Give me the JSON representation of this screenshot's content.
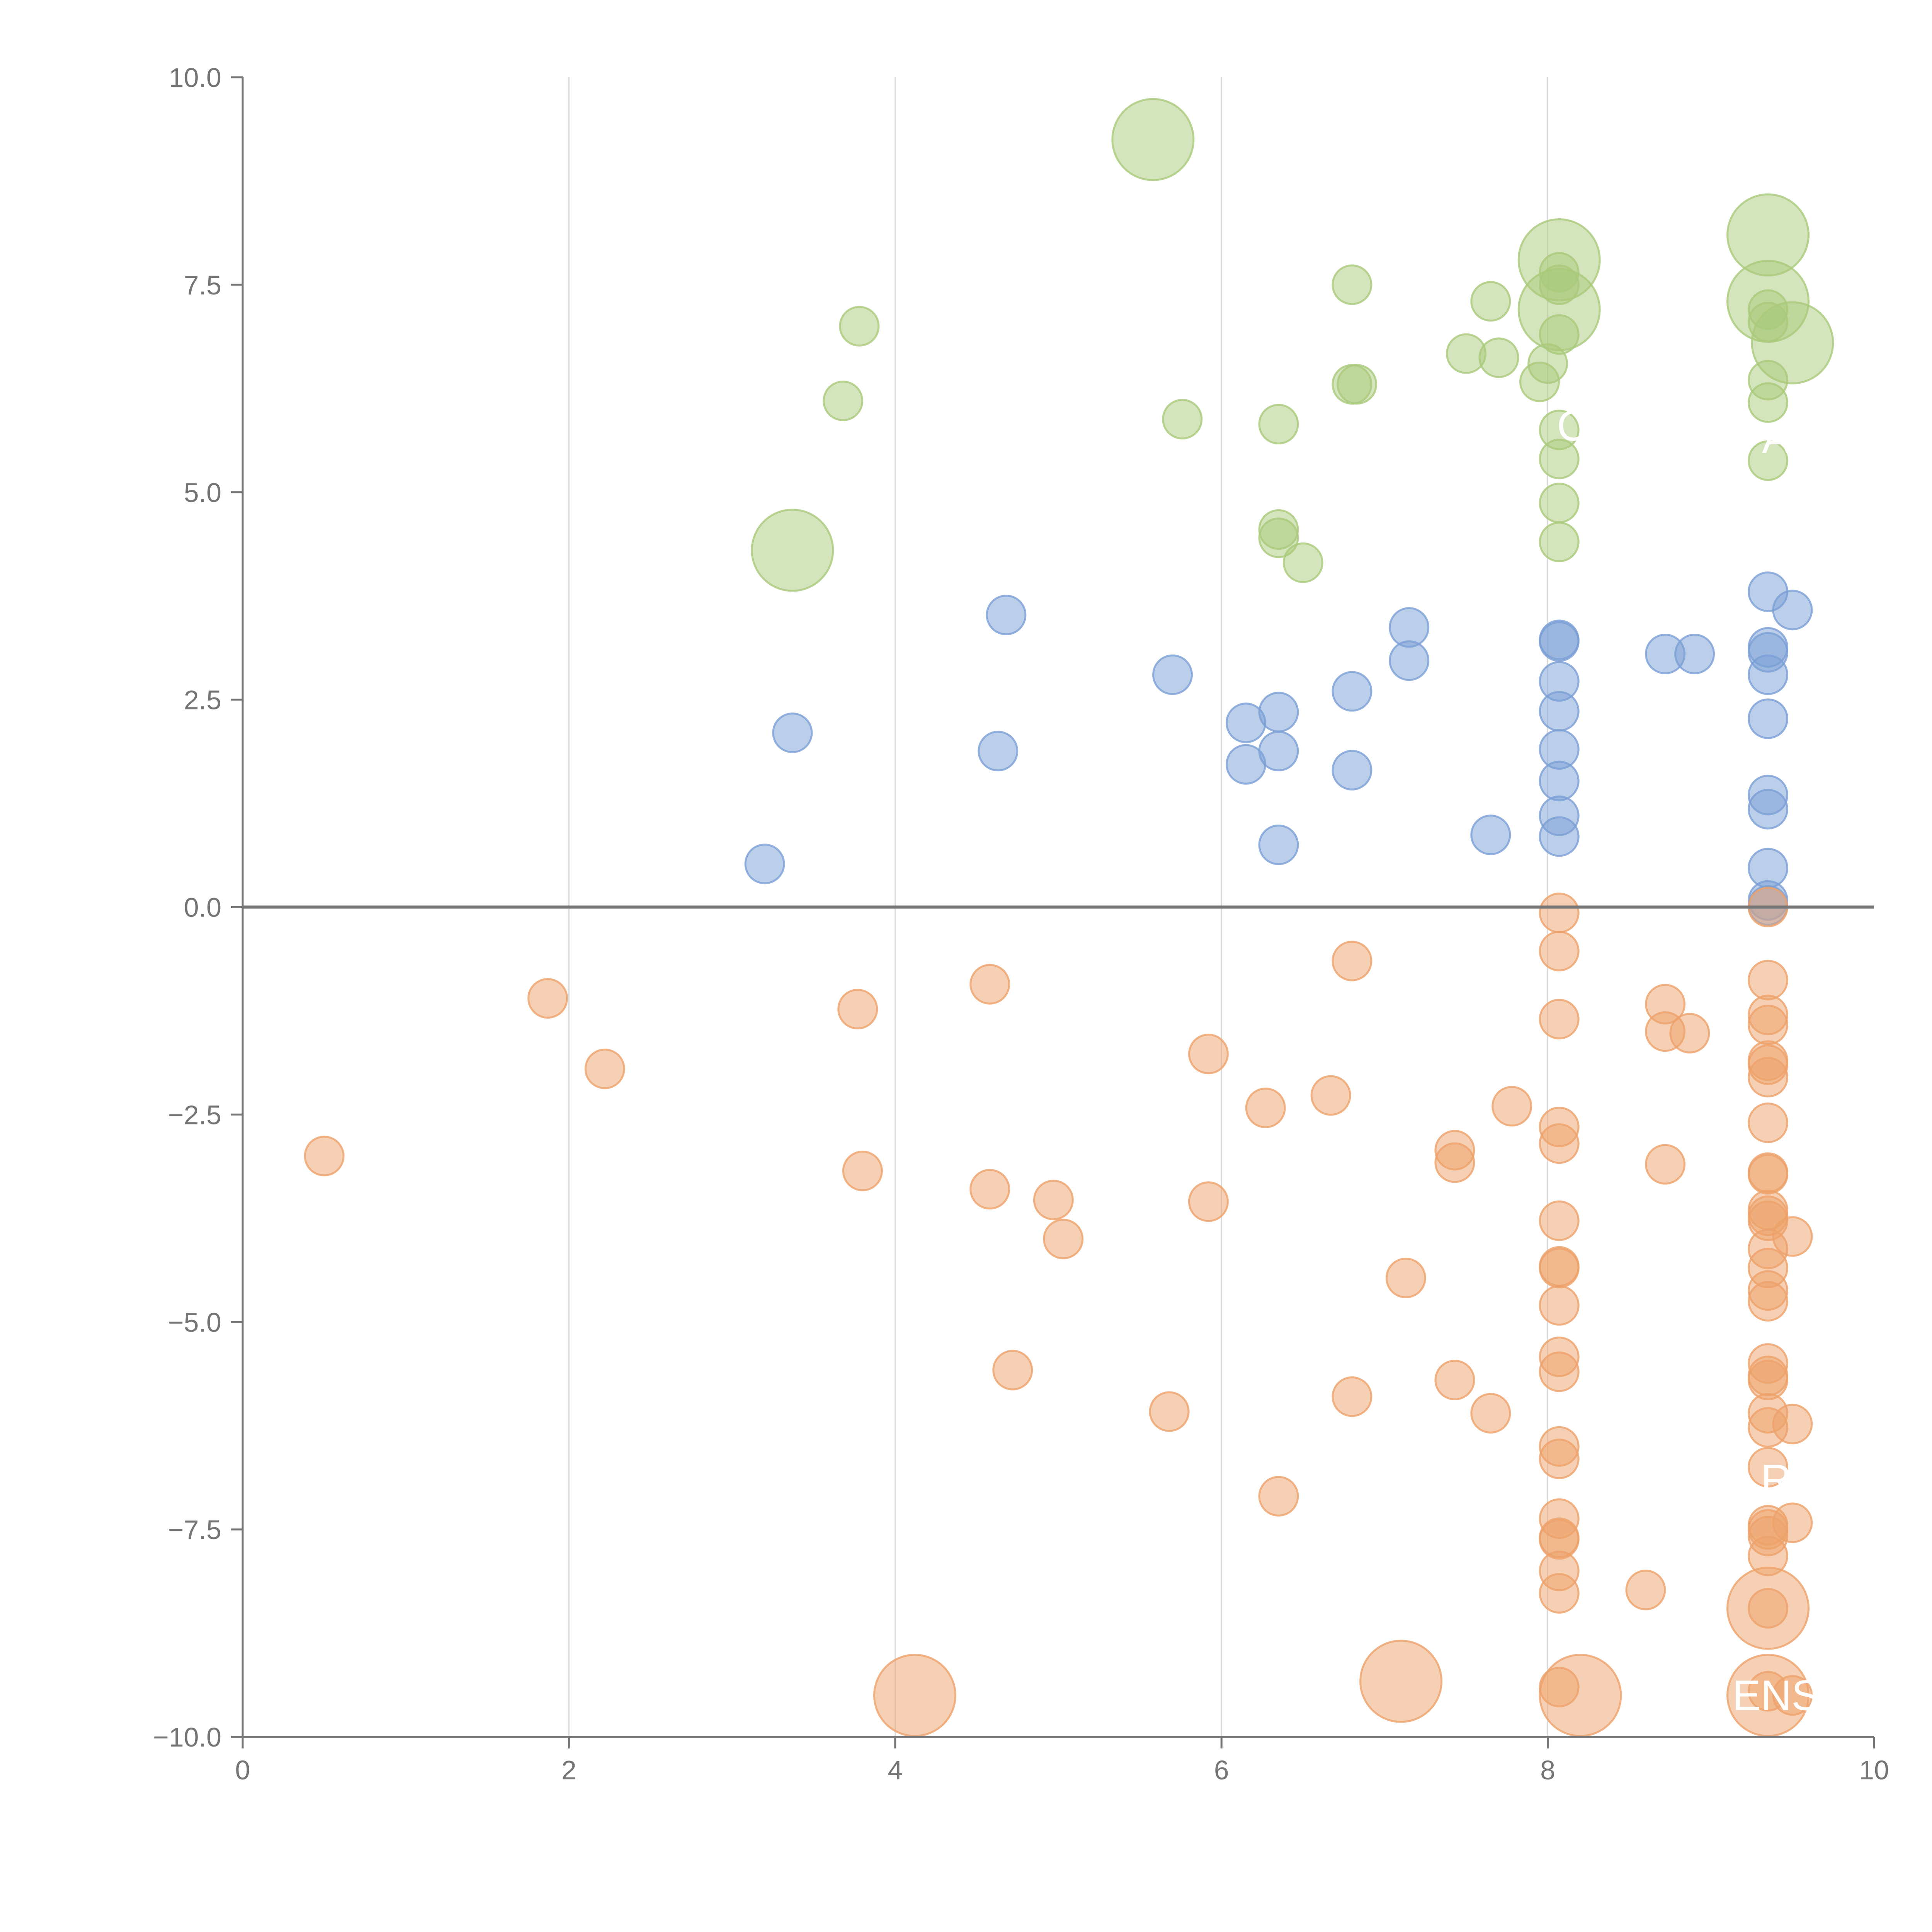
{
  "chart_data": {
    "type": "scatter",
    "title": "",
    "xlabel": "",
    "ylabel": "",
    "xlim": [
      0,
      10
    ],
    "ylim": [
      -10,
      10
    ],
    "grid": "vertical",
    "x_ticks": [
      "0",
      "2",
      "4",
      "6",
      "8",
      "10"
    ],
    "y_ticks": [
      "−10.0",
      "−7.5",
      "−5.0",
      "−2.5",
      "0.0",
      "2.5",
      "5.0",
      "7.5",
      "10.0"
    ],
    "bubble_sizes_note_small": 1,
    "colors": {
      "green": "#a9c97a",
      "blue": "#7a9fd6",
      "orange": "#eea16a"
    },
    "annotations": [
      {
        "text": "ENS",
        "x": 9.4,
        "y": -9.5
      },
      {
        "text": "R",
        "x": 9.4,
        "y": -6.9
      },
      {
        "text": "C",
        "x": 8.15,
        "y": 5.8
      },
      {
        "text": "A",
        "x": 9.4,
        "y": 5.65
      }
    ],
    "series": [
      {
        "color": "green",
        "points": [
          [
            5.58,
            9.25,
            3
          ],
          [
            3.37,
            4.3,
            3
          ],
          [
            8.07,
            7.8,
            3
          ],
          [
            8.07,
            7.2,
            3
          ],
          [
            9.35,
            8.1,
            3
          ],
          [
            9.35,
            7.3,
            3
          ],
          [
            9.5,
            6.8,
            3
          ],
          [
            3.78,
            7.0,
            1
          ],
          [
            3.68,
            6.1,
            1
          ],
          [
            6.8,
            7.5,
            1
          ],
          [
            6.8,
            6.3,
            1
          ],
          [
            6.83,
            6.3,
            1
          ],
          [
            5.76,
            5.88,
            1
          ],
          [
            6.35,
            5.82,
            1
          ],
          [
            6.35,
            4.55,
            1
          ],
          [
            6.35,
            4.45,
            1
          ],
          [
            6.5,
            4.15,
            1
          ],
          [
            7.5,
            6.67,
            1
          ],
          [
            7.65,
            7.3,
            1
          ],
          [
            7.7,
            6.62,
            1
          ],
          [
            7.95,
            6.33,
            1
          ],
          [
            8.0,
            6.55,
            1
          ],
          [
            8.07,
            7.65,
            1
          ],
          [
            8.07,
            7.5,
            1
          ],
          [
            8.07,
            6.9,
            1
          ],
          [
            8.07,
            5.75,
            1
          ],
          [
            8.07,
            5.4,
            1
          ],
          [
            8.07,
            4.87,
            1
          ],
          [
            8.07,
            4.4,
            1
          ],
          [
            9.35,
            7.2,
            1
          ],
          [
            9.35,
            7.05,
            1
          ],
          [
            9.35,
            6.35,
            1
          ],
          [
            9.35,
            6.08,
            1
          ],
          [
            9.35,
            5.38,
            1
          ]
        ]
      },
      {
        "color": "blue",
        "points": [
          [
            3.2,
            0.52,
            1
          ],
          [
            3.37,
            2.1,
            1
          ],
          [
            4.63,
            1.88,
            1
          ],
          [
            4.68,
            3.52,
            1
          ],
          [
            5.7,
            2.8,
            1
          ],
          [
            6.15,
            2.22,
            1
          ],
          [
            6.15,
            1.72,
            1
          ],
          [
            6.35,
            2.35,
            1
          ],
          [
            6.35,
            1.88,
            1
          ],
          [
            6.35,
            0.75,
            1
          ],
          [
            6.8,
            2.6,
            1
          ],
          [
            6.8,
            1.65,
            1
          ],
          [
            7.15,
            3.37,
            1
          ],
          [
            7.15,
            2.97,
            1
          ],
          [
            7.65,
            0.87,
            1
          ],
          [
            8.07,
            3.22,
            1
          ],
          [
            8.07,
            3.2,
            1
          ],
          [
            8.07,
            2.72,
            1
          ],
          [
            8.07,
            2.36,
            1
          ],
          [
            8.07,
            1.9,
            1
          ],
          [
            8.07,
            1.52,
            1
          ],
          [
            8.07,
            1.1,
            1
          ],
          [
            8.07,
            0.85,
            1
          ],
          [
            8.72,
            3.05,
            1
          ],
          [
            8.9,
            3.05,
            1
          ],
          [
            9.35,
            3.8,
            1
          ],
          [
            9.5,
            3.58,
            1
          ],
          [
            9.35,
            3.13,
            1
          ],
          [
            9.35,
            3.07,
            1
          ],
          [
            9.35,
            2.8,
            1
          ],
          [
            9.35,
            2.27,
            1
          ],
          [
            9.35,
            1.35,
            1
          ],
          [
            9.35,
            1.18,
            1
          ],
          [
            9.35,
            0.47,
            1
          ],
          [
            9.35,
            0.08,
            1
          ],
          [
            9.35,
            0.02,
            1
          ]
        ]
      },
      {
        "color": "orange",
        "points": [
          [
            4.12,
            -9.5,
            3
          ],
          [
            7.1,
            -9.33,
            3
          ],
          [
            8.2,
            -9.5,
            3
          ],
          [
            9.35,
            -8.45,
            3
          ],
          [
            9.35,
            -9.5,
            3
          ],
          [
            0.5,
            -3.0,
            1
          ],
          [
            1.87,
            -1.1,
            1
          ],
          [
            2.22,
            -1.95,
            1
          ],
          [
            3.77,
            -1.23,
            1
          ],
          [
            3.8,
            -3.18,
            1
          ],
          [
            4.58,
            -0.93,
            1
          ],
          [
            4.58,
            -3.4,
            1
          ],
          [
            4.72,
            -5.58,
            1
          ],
          [
            4.97,
            -3.53,
            1
          ],
          [
            5.03,
            -4.0,
            1
          ],
          [
            5.68,
            -6.08,
            1
          ],
          [
            5.92,
            -1.77,
            1
          ],
          [
            5.92,
            -3.55,
            1
          ],
          [
            6.27,
            -2.42,
            1
          ],
          [
            6.35,
            -7.1,
            1
          ],
          [
            6.67,
            -2.27,
            1
          ],
          [
            6.8,
            -0.65,
            1
          ],
          [
            6.8,
            -5.9,
            1
          ],
          [
            7.13,
            -4.47,
            1
          ],
          [
            7.43,
            -2.93,
            1
          ],
          [
            7.43,
            -3.08,
            1
          ],
          [
            7.43,
            -5.7,
            1
          ],
          [
            7.65,
            -6.1,
            1
          ],
          [
            7.78,
            -2.4,
            1
          ],
          [
            8.07,
            -0.07,
            1
          ],
          [
            8.07,
            -0.53,
            1
          ],
          [
            8.07,
            -1.35,
            1
          ],
          [
            8.07,
            -2.65,
            1
          ],
          [
            8.07,
            -2.85,
            1
          ],
          [
            8.07,
            -3.78,
            1
          ],
          [
            8.07,
            -4.33,
            1
          ],
          [
            8.07,
            -4.35,
            1
          ],
          [
            8.07,
            -4.8,
            1
          ],
          [
            8.07,
            -5.42,
            1
          ],
          [
            8.07,
            -5.6,
            1
          ],
          [
            8.07,
            -6.5,
            1
          ],
          [
            8.07,
            -6.65,
            1
          ],
          [
            8.07,
            -7.37,
            1
          ],
          [
            8.07,
            -7.6,
            1
          ],
          [
            8.07,
            -7.62,
            1
          ],
          [
            8.07,
            -8.0,
            1
          ],
          [
            8.07,
            -8.27,
            1
          ],
          [
            8.07,
            -9.4,
            1
          ],
          [
            8.6,
            -8.23,
            1
          ],
          [
            8.72,
            -1.17,
            1
          ],
          [
            8.72,
            -1.5,
            1
          ],
          [
            8.87,
            -1.52,
            1
          ],
          [
            8.72,
            -3.1,
            1
          ],
          [
            9.35,
            0.0,
            1
          ],
          [
            9.35,
            -0.88,
            1
          ],
          [
            9.35,
            -1.3,
            1
          ],
          [
            9.35,
            -1.42,
            1
          ],
          [
            9.35,
            -1.85,
            1
          ],
          [
            9.35,
            -1.9,
            1
          ],
          [
            9.35,
            -2.05,
            1
          ],
          [
            9.35,
            -2.6,
            1
          ],
          [
            9.35,
            -3.2,
            1
          ],
          [
            9.35,
            -3.22,
            1
          ],
          [
            9.35,
            -3.65,
            1
          ],
          [
            9.35,
            -3.72,
            1
          ],
          [
            9.35,
            -3.78,
            1
          ],
          [
            9.35,
            -4.12,
            1
          ],
          [
            9.35,
            -4.35,
            1
          ],
          [
            9.35,
            -4.62,
            1
          ],
          [
            9.35,
            -4.75,
            1
          ],
          [
            9.35,
            -5.5,
            1
          ],
          [
            9.35,
            -5.65,
            1
          ],
          [
            9.35,
            -5.7,
            1
          ],
          [
            9.35,
            -6.1,
            1
          ],
          [
            9.35,
            -6.27,
            1
          ],
          [
            9.35,
            -6.75,
            1
          ],
          [
            9.35,
            -7.45,
            1
          ],
          [
            9.35,
            -7.5,
            1
          ],
          [
            9.35,
            -7.58,
            1
          ],
          [
            9.35,
            -7.82,
            1
          ],
          [
            9.35,
            -8.45,
            1
          ],
          [
            9.35,
            -9.45,
            1
          ],
          [
            9.5,
            -3.97,
            1
          ],
          [
            9.5,
            -6.23,
            1
          ],
          [
            9.5,
            -7.42,
            1
          ],
          [
            9.5,
            -9.5,
            1
          ]
        ]
      }
    ]
  }
}
